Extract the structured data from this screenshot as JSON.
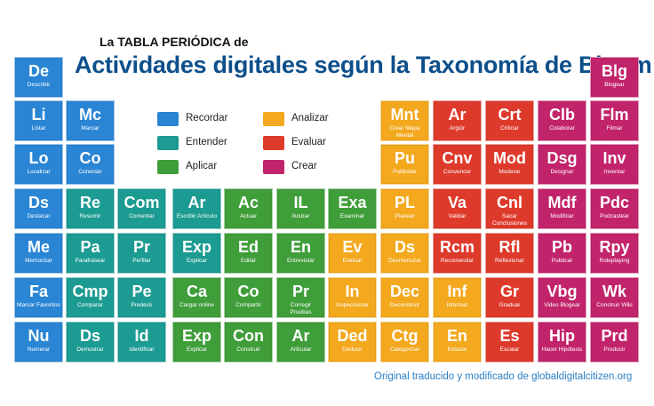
{
  "header": {
    "subtitle": "La TABLA PERIÓDICA de",
    "title": "Actividades digitales según la Taxonomía de Bloom"
  },
  "colors": {
    "recordar": "#2a85d4",
    "entender": "#1c9b92",
    "aplicar": "#3f9e3a",
    "analizar": "#f3a81d",
    "evaluar": "#de3a2c",
    "crear": "#c2246b"
  },
  "legend": [
    {
      "label": "Recordar",
      "cat": "recordar"
    },
    {
      "label": "Entender",
      "cat": "entender"
    },
    {
      "label": "Aplicar",
      "cat": "aplicar"
    },
    {
      "label": "Analizar",
      "cat": "analizar"
    },
    {
      "label": "Evaluar",
      "cat": "evaluar"
    },
    {
      "label": "Crear",
      "cat": "crear"
    }
  ],
  "elements": [
    {
      "sym": "De",
      "name": "Describir",
      "cat": "recordar"
    },
    {
      "sym": "Blg",
      "name": "Blogear",
      "cat": "crear"
    },
    {
      "sym": "Li",
      "name": "Listar",
      "cat": "recordar"
    },
    {
      "sym": "Mc",
      "name": "Marcar",
      "cat": "recordar"
    },
    {
      "sym": "Mnt",
      "name": "Crear Mapa Mental",
      "cat": "analizar"
    },
    {
      "sym": "Ar",
      "name": "Argüir",
      "cat": "evaluar"
    },
    {
      "sym": "Crt",
      "name": "Criticar",
      "cat": "evaluar"
    },
    {
      "sym": "Clb",
      "name": "Colaborar",
      "cat": "crear"
    },
    {
      "sym": "Flm",
      "name": "Filmar",
      "cat": "crear"
    },
    {
      "sym": "Lo",
      "name": "Localizar",
      "cat": "recordar"
    },
    {
      "sym": "Co",
      "name": "Conectar",
      "cat": "recordar"
    },
    {
      "sym": "Pu",
      "name": "Publicitar",
      "cat": "analizar"
    },
    {
      "sym": "Cnv",
      "name": "Convencer",
      "cat": "evaluar"
    },
    {
      "sym": "Mod",
      "name": "Moderar",
      "cat": "evaluar"
    },
    {
      "sym": "Dsg",
      "name": "Designar",
      "cat": "crear"
    },
    {
      "sym": "Inv",
      "name": "Inventar",
      "cat": "crear"
    },
    {
      "sym": "Ds",
      "name": "Destacar",
      "cat": "recordar"
    },
    {
      "sym": "Re",
      "name": "Resumir",
      "cat": "entender"
    },
    {
      "sym": "Com",
      "name": "Comentar",
      "cat": "entender"
    },
    {
      "sym": "Ar",
      "name": "Escribir Artículo",
      "cat": "entender"
    },
    {
      "sym": "Ac",
      "name": "Actuar",
      "cat": "aplicar"
    },
    {
      "sym": "IL",
      "name": "Ilustrar",
      "cat": "aplicar"
    },
    {
      "sym": "Exa",
      "name": "Examinar",
      "cat": "aplicar"
    },
    {
      "sym": "PL",
      "name": "Planear",
      "cat": "analizar"
    },
    {
      "sym": "Va",
      "name": "Validar",
      "cat": "evaluar"
    },
    {
      "sym": "Cnl",
      "name": "Sacar Conclusiones",
      "cat": "evaluar"
    },
    {
      "sym": "Mdf",
      "name": "Modificar",
      "cat": "crear"
    },
    {
      "sym": "Pdc",
      "name": "Podcastear",
      "cat": "crear"
    },
    {
      "sym": "Me",
      "name": "Memorizar",
      "cat": "recordar"
    },
    {
      "sym": "Pa",
      "name": "Parafrasear",
      "cat": "entender"
    },
    {
      "sym": "Pr",
      "name": "Perfilar",
      "cat": "entender"
    },
    {
      "sym": "Exp",
      "name": "Explicar",
      "cat": "entender"
    },
    {
      "sym": "Ed",
      "name": "Editar",
      "cat": "aplicar"
    },
    {
      "sym": "En",
      "name": "Entrevistar",
      "cat": "aplicar"
    },
    {
      "sym": "Ev",
      "name": "Evaluar",
      "cat": "analizar"
    },
    {
      "sym": "Ds",
      "name": "Desmenuzar",
      "cat": "analizar"
    },
    {
      "sym": "Rcm",
      "name": "Recomendar",
      "cat": "evaluar"
    },
    {
      "sym": "Rfl",
      "name": "Reflexionar",
      "cat": "evaluar"
    },
    {
      "sym": "Pb",
      "name": "Publicar",
      "cat": "crear"
    },
    {
      "sym": "Rpy",
      "name": "Roleplaying",
      "cat": "crear"
    },
    {
      "sym": "Fa",
      "name": "Marcar Favoritos",
      "cat": "recordar"
    },
    {
      "sym": "Cmp",
      "name": "Comparar",
      "cat": "entender"
    },
    {
      "sym": "Pe",
      "name": "Predecir",
      "cat": "entender"
    },
    {
      "sym": "Ca",
      "name": "Cargar online",
      "cat": "aplicar"
    },
    {
      "sym": "Co",
      "name": "Compartir",
      "cat": "aplicar"
    },
    {
      "sym": "Pr",
      "name": "Corregir Pruebas",
      "cat": "aplicar"
    },
    {
      "sym": "In",
      "name": "Inspeccionar",
      "cat": "analizar"
    },
    {
      "sym": "Dec",
      "name": "Deconstruir",
      "cat": "analizar"
    },
    {
      "sym": "Inf",
      "name": "Informar",
      "cat": "analizar"
    },
    {
      "sym": "Gr",
      "name": "Graduar",
      "cat": "evaluar"
    },
    {
      "sym": "Vbg",
      "name": "Video Blogear",
      "cat": "crear"
    },
    {
      "sym": "Wk",
      "name": "Construir Wiki",
      "cat": "crear"
    },
    {
      "sym": "Nu",
      "name": "Numerar",
      "cat": "recordar"
    },
    {
      "sym": "Ds",
      "name": "Demostrar",
      "cat": "entender"
    },
    {
      "sym": "Id",
      "name": "Identificar",
      "cat": "entender"
    },
    {
      "sym": "Exp",
      "name": "Explicar",
      "cat": "aplicar"
    },
    {
      "sym": "Con",
      "name": "Construir",
      "cat": "aplicar"
    },
    {
      "sym": "Ar",
      "name": "Articular",
      "cat": "aplicar"
    },
    {
      "sym": "Ded",
      "name": "Deducir",
      "cat": "analizar"
    },
    {
      "sym": "Ctg",
      "name": "Categorizar",
      "cat": "analizar"
    },
    {
      "sym": "En",
      "name": "Enlazar",
      "cat": "analizar"
    },
    {
      "sym": "Es",
      "name": "Escalar",
      "cat": "evaluar"
    },
    {
      "sym": "Hip",
      "name": "Hacer Hipótesis",
      "cat": "crear"
    },
    {
      "sym": "Prd",
      "name": "Producir",
      "cat": "crear"
    }
  ],
  "footer": "Original traducido y modificado de globaldigitalcitizen.org"
}
